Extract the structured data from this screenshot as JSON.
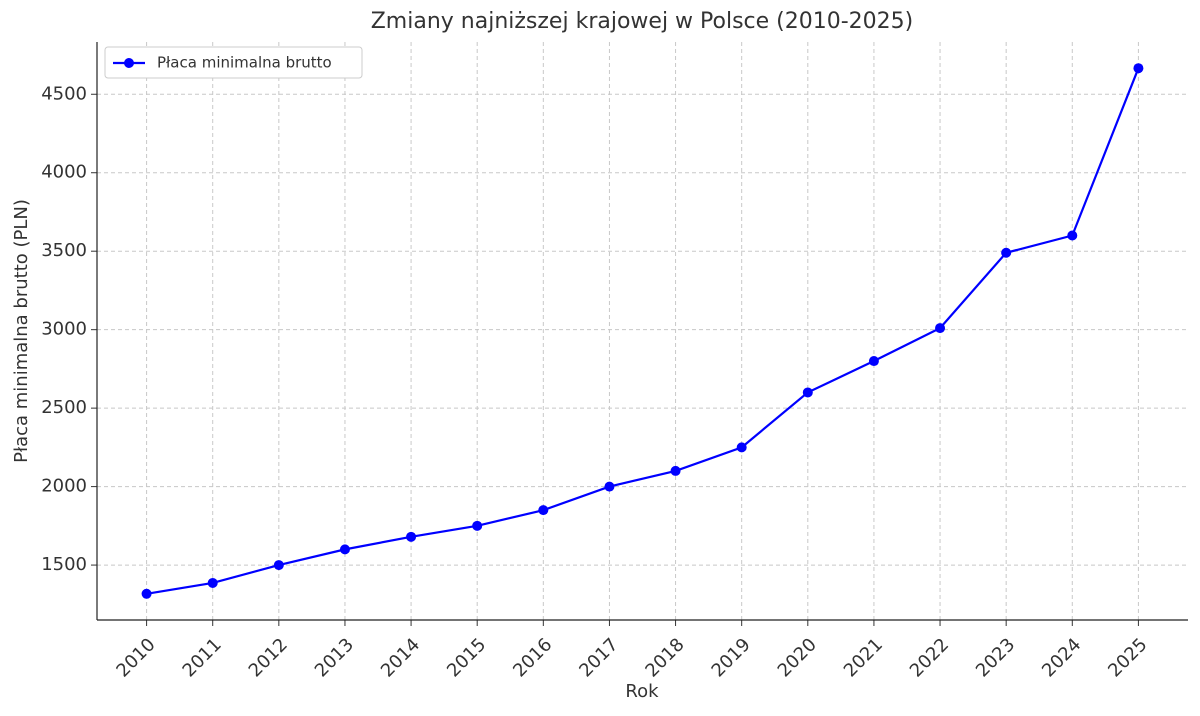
{
  "chart_data": {
    "type": "line",
    "title": "Zmiany najniższej krajowej w Polsce (2010-2025)",
    "x_label": "Rok",
    "y_label": "Płaca minimalna brutto (PLN)",
    "x": [
      2010,
      2011,
      2012,
      2013,
      2014,
      2015,
      2016,
      2017,
      2018,
      2019,
      2020,
      2021,
      2022,
      2023,
      2024,
      2025
    ],
    "series": [
      {
        "name": "Płaca minimalna brutto",
        "color": "#0000ff",
        "values": [
          1317,
          1386,
          1500,
          1600,
          1680,
          1750,
          1850,
          2000,
          2100,
          2250,
          2600,
          2800,
          3010,
          3490,
          3600,
          4666
        ]
      }
    ],
    "xlim": [
      2009.25,
      2025.75
    ],
    "xticks": [
      2010,
      2011,
      2012,
      2013,
      2014,
      2015,
      2016,
      2017,
      2018,
      2019,
      2020,
      2021,
      2022,
      2023,
      2024,
      2025
    ],
    "ylim": [
      1150,
      4833
    ],
    "yticks": [
      1500,
      2000,
      2500,
      3000,
      3500,
      4000,
      4500
    ],
    "grid": true,
    "legend": "upper left"
  }
}
